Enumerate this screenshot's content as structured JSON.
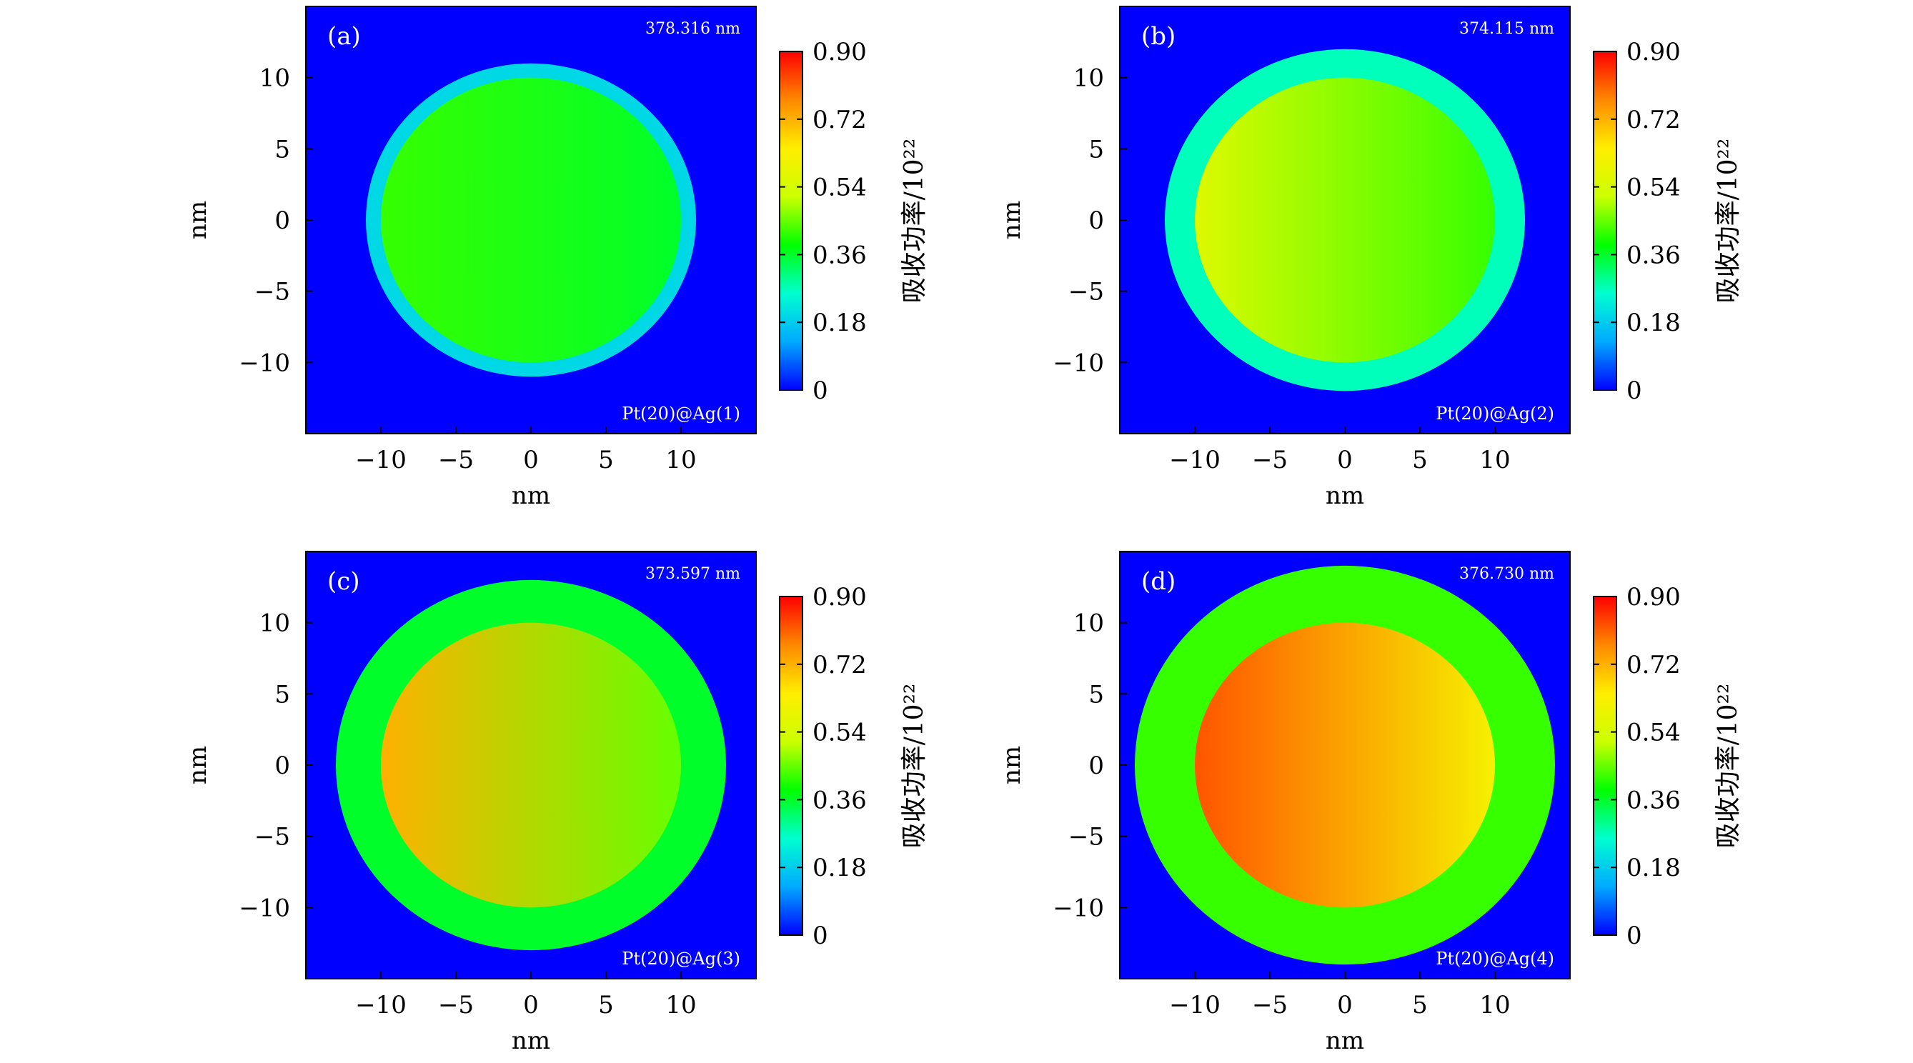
{
  "colors": {
    "background": "#0000ff",
    "colormap": [
      "#0000ff",
      "#00aaff",
      "#00ffd0",
      "#00ff00",
      "#ccff00",
      "#ffee00",
      "#ff8800",
      "#ff0000"
    ]
  },
  "chart_data": [
    {
      "type": "heatmap",
      "panel": "(a)",
      "wavelength": "378.316 nm",
      "sample": "Pt(20)@Ag(1)",
      "xlabel": "nm",
      "ylabel": "nm",
      "xlim": [
        -15,
        15
      ],
      "ylim": [
        -15,
        15
      ],
      "xticks": [
        -10,
        -5,
        0,
        5,
        10
      ],
      "yticks": [
        -10,
        -5,
        0,
        5,
        10
      ],
      "xtick_labels": [
        "−10",
        "−5",
        "0",
        "5",
        "10"
      ],
      "ytick_labels": [
        "−10",
        "−5",
        "0",
        "5",
        "10"
      ],
      "core": {
        "radius_nm": 10,
        "value_left": 0.42,
        "value_right": 0.36
      },
      "shell": {
        "outer_radius_nm": 11,
        "value": 0.2
      },
      "background_value": 0,
      "colorbar": {
        "label": "吸收功率/10²²",
        "min": 0,
        "max": 0.9,
        "ticks": [
          "0",
          "0.18",
          "0.36",
          "0.54",
          "0.72",
          "0.90"
        ]
      }
    },
    {
      "type": "heatmap",
      "panel": "(b)",
      "wavelength": "374.115 nm",
      "sample": "Pt(20)@Ag(2)",
      "xlabel": "nm",
      "ylabel": "nm",
      "xlim": [
        -15,
        15
      ],
      "ylim": [
        -15,
        15
      ],
      "xticks": [
        -10,
        -5,
        0,
        5,
        10
      ],
      "yticks": [
        -10,
        -5,
        0,
        5,
        10
      ],
      "xtick_labels": [
        "−10",
        "−5",
        "0",
        "5",
        "10"
      ],
      "ytick_labels": [
        "−10",
        "−5",
        "0",
        "5",
        "10"
      ],
      "core": {
        "radius_nm": 10,
        "value_left": 0.56,
        "value_right": 0.42
      },
      "shell": {
        "outer_radius_nm": 12,
        "value": 0.27
      },
      "background_value": 0,
      "colorbar": {
        "label": "吸收功率/10²²",
        "min": 0,
        "max": 0.9,
        "ticks": [
          "0",
          "0.18",
          "0.36",
          "0.54",
          "0.72",
          "0.90"
        ]
      }
    },
    {
      "type": "heatmap",
      "panel": "(c)",
      "wavelength": "373.597 nm",
      "sample": "Pt(20)@Ag(3)",
      "xlabel": "nm",
      "ylabel": "nm",
      "xlim": [
        -15,
        15
      ],
      "ylim": [
        -15,
        15
      ],
      "xticks": [
        -10,
        -5,
        0,
        5,
        10
      ],
      "yticks": [
        -10,
        -5,
        0,
        5,
        10
      ],
      "xtick_labels": [
        "−10",
        "−5",
        "0",
        "5",
        "10"
      ],
      "ytick_labels": [
        "−10",
        "−5",
        "0",
        "5",
        "10"
      ],
      "core": {
        "radius_nm": 10,
        "value_left": 0.72,
        "value_right": 0.45
      },
      "shell": {
        "outer_radius_nm": 13,
        "value": 0.36
      },
      "background_value": 0,
      "colorbar": {
        "label": "吸收功率/10²²",
        "min": 0,
        "max": 0.9,
        "ticks": [
          "0",
          "0.18",
          "0.36",
          "0.54",
          "0.72",
          "0.90"
        ]
      }
    },
    {
      "type": "heatmap",
      "panel": "(d)",
      "wavelength": "376.730 nm",
      "sample": "Pt(20)@Ag(4)",
      "xlabel": "nm",
      "ylabel": "nm",
      "xlim": [
        -15,
        15
      ],
      "ylim": [
        -15,
        15
      ],
      "xticks": [
        -10,
        -5,
        0,
        5,
        10
      ],
      "yticks": [
        -10,
        -5,
        0,
        5,
        10
      ],
      "xtick_labels": [
        "−10",
        "−5",
        "0",
        "5",
        "10"
      ],
      "ytick_labels": [
        "−10",
        "−5",
        "0",
        "5",
        "10"
      ],
      "core": {
        "radius_nm": 10,
        "value_left": 0.82,
        "value_right": 0.62
      },
      "shell": {
        "outer_radius_nm": 14,
        "value": 0.42
      },
      "background_value": 0,
      "colorbar": {
        "label": "吸收功率/10²²",
        "min": 0,
        "max": 0.9,
        "ticks": [
          "0",
          "0.18",
          "0.36",
          "0.54",
          "0.72",
          "0.90"
        ]
      }
    }
  ]
}
